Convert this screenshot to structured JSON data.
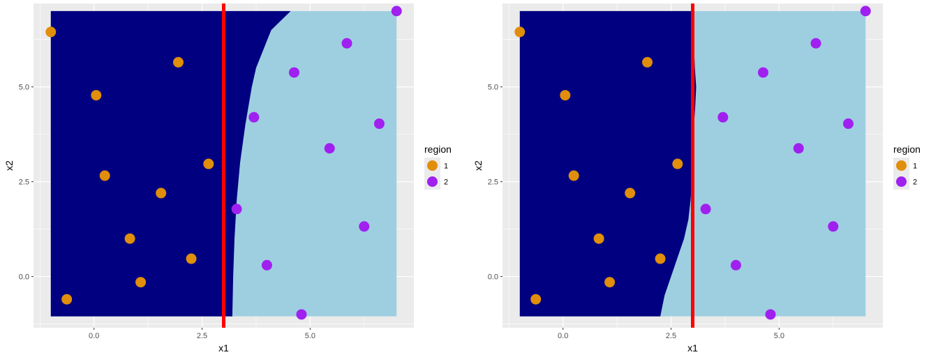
{
  "colors": {
    "panel_bg": "#ebebeb",
    "grid": "#ffffff",
    "region1_fill": "#000080",
    "region2_fill": "#9ecfe0",
    "point_region1": "#e08e0b",
    "point_region2": "#a020f0",
    "vline": "#ff0000"
  },
  "legend": {
    "title": "region",
    "items": [
      {
        "label": "1",
        "color": "#e08e0b"
      },
      {
        "label": "2",
        "color": "#a020f0"
      }
    ]
  },
  "chart_data": [
    {
      "type": "scatter",
      "xlabel": "x1",
      "ylabel": "x2",
      "xlim": [
        -1.4,
        7.4
      ],
      "ylim": [
        -1.35,
        7.2
      ],
      "xticks": [
        0,
        2.5,
        5
      ],
      "xtick_labels": [
        "0.0",
        "2.5",
        "5.0"
      ],
      "yticks": [
        0,
        2.5,
        5
      ],
      "ytick_labels": [
        "0.0",
        "2.5",
        "5.0"
      ],
      "grid": true,
      "vline_x": 3.0,
      "background_region": {
        "x_range": [
          -1.0,
          7.0
        ],
        "y_range": [
          -1.05,
          7.0
        ],
        "boundary": [
          [
            7.0,
            4.55
          ],
          [
            6.5,
            4.1
          ],
          [
            5.5,
            3.75
          ],
          [
            5.0,
            3.65
          ],
          [
            4.0,
            3.5
          ],
          [
            3.0,
            3.38
          ],
          [
            2.0,
            3.3
          ],
          [
            1.0,
            3.25
          ],
          [
            0.0,
            3.22
          ],
          [
            -1.05,
            3.2
          ]
        ]
      },
      "series": [
        {
          "name": "1",
          "points": [
            [
              -1.0,
              6.45
            ],
            [
              1.95,
              5.65
            ],
            [
              0.05,
              4.78
            ],
            [
              2.65,
              2.97
            ],
            [
              0.25,
              2.66
            ],
            [
              1.55,
              2.2
            ],
            [
              0.83,
              1.0
            ],
            [
              2.25,
              0.47
            ],
            [
              1.08,
              -0.15
            ],
            [
              -0.63,
              -0.6
            ]
          ]
        },
        {
          "name": "2",
          "points": [
            [
              7.0,
              7.0
            ],
            [
              5.85,
              6.15
            ],
            [
              4.63,
              5.38
            ],
            [
              3.7,
              4.2
            ],
            [
              6.6,
              4.03
            ],
            [
              5.45,
              3.38
            ],
            [
              3.3,
              1.78
            ],
            [
              6.25,
              1.32
            ],
            [
              4.0,
              0.3
            ],
            [
              4.8,
              -1.0
            ]
          ]
        }
      ]
    },
    {
      "type": "scatter",
      "xlabel": "x1",
      "ylabel": "x2",
      "xlim": [
        -1.4,
        7.4
      ],
      "ylim": [
        -1.35,
        7.2
      ],
      "xticks": [
        0,
        2.5,
        5
      ],
      "xtick_labels": [
        "0.0",
        "2.5",
        "5.0"
      ],
      "yticks": [
        0,
        2.5,
        5
      ],
      "ytick_labels": [
        "0.0",
        "2.5",
        "5.0"
      ],
      "grid": true,
      "vline_x": 3.0,
      "background_region": {
        "x_range": [
          -1.0,
          7.0
        ],
        "y_range": [
          -1.05,
          7.0
        ],
        "boundary": [
          [
            7.0,
            3.0
          ],
          [
            5.5,
            3.05
          ],
          [
            5.0,
            3.08
          ],
          [
            4.5,
            3.06
          ],
          [
            4.0,
            3.03
          ],
          [
            3.0,
            3.0
          ],
          [
            2.5,
            2.98
          ],
          [
            2.0,
            2.95
          ],
          [
            1.5,
            2.9
          ],
          [
            1.0,
            2.8
          ],
          [
            0.5,
            2.65
          ],
          [
            0.0,
            2.5
          ],
          [
            -0.5,
            2.35
          ],
          [
            -1.05,
            2.25
          ]
        ]
      },
      "series": [
        {
          "name": "1",
          "points": [
            [
              -1.0,
              6.45
            ],
            [
              1.95,
              5.65
            ],
            [
              0.05,
              4.78
            ],
            [
              2.65,
              2.97
            ],
            [
              0.25,
              2.66
            ],
            [
              1.55,
              2.2
            ],
            [
              0.83,
              1.0
            ],
            [
              2.25,
              0.47
            ],
            [
              1.08,
              -0.15
            ],
            [
              -0.63,
              -0.6
            ]
          ]
        },
        {
          "name": "2",
          "points": [
            [
              7.0,
              7.0
            ],
            [
              5.85,
              6.15
            ],
            [
              4.63,
              5.38
            ],
            [
              3.7,
              4.2
            ],
            [
              6.6,
              4.03
            ],
            [
              5.45,
              3.38
            ],
            [
              3.3,
              1.78
            ],
            [
              6.25,
              1.32
            ],
            [
              4.0,
              0.3
            ],
            [
              4.8,
              -1.0
            ]
          ]
        }
      ]
    }
  ]
}
